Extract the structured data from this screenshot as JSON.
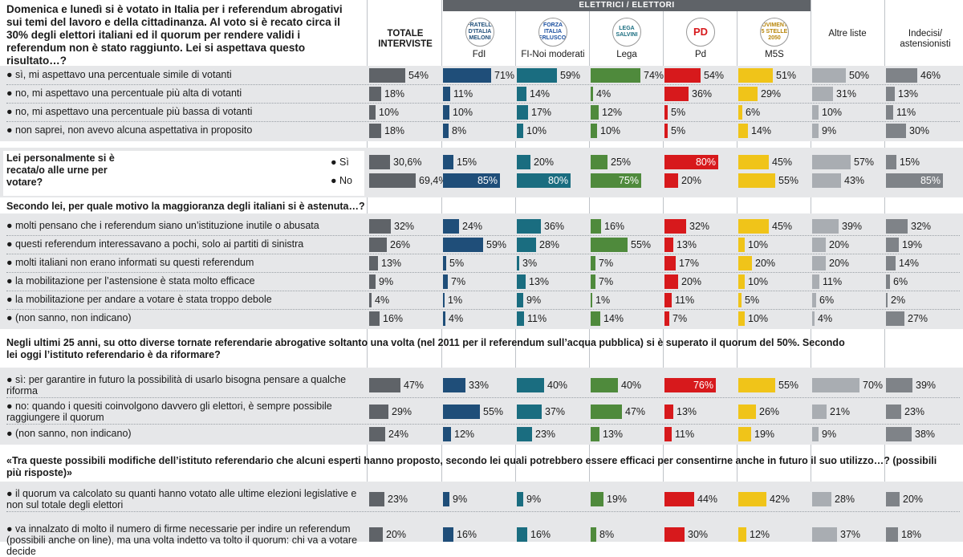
{
  "colors": {
    "totale": "#5f6368",
    "fdi": "#1f4e79",
    "fi": "#1a6d80",
    "lega": "#4f8a3c",
    "pd": "#d7191c",
    "m5s": "#f0c419",
    "altre": "#a9adb2",
    "indecisi": "#7f8388"
  },
  "header": {
    "question": "Domenica e lunedì si è votato in Italia per i referendum abrogativi sui temi del lavoro e della cittadinanza. Al voto si è recato circa il 30% degli elettori italiani ed il quorum per rendere validi i referendum non è stato raggiunto. Lei si aspettava questo risultato…?",
    "party_band": "ELETTRICI / ELETTORI",
    "totale": "TOTALE INTERVISTE",
    "columns": [
      "FdI",
      "FI-Noi moderati",
      "Lega",
      "Pd",
      "M5S",
      "Altre liste",
      "Indecisi/ astensionisti"
    ],
    "logos": [
      "FRATELLI D'ITALIA MELONI",
      "FORZA ITALIA BERLUSCONI",
      "LEGA SALVINI",
      "PD",
      "MOVIMENTO 5 STELLE 2050"
    ]
  },
  "sections": {
    "q2": "Lei personalmente si è recata/o alle urne per votare?",
    "q3": "Secondo lei, per quale motivo la maggioranza degli italiani si è astenuta…?",
    "q4": "Negli ultimi 25 anni, su otto diverse tornate referendarie abrogative soltanto una volta (nel 2011 per il referendum sull’acqua pubblica) si è superato il quorum del 50%. Secondo lei oggi l’istituto referendario è da riformare?",
    "q5": "«Tra queste possibili modifiche dell’istituto referendario che alcuni esperti hanno proposto, secondo lei quali potrebbero essere efficaci per consentirne anche in futuro il suo utilizzo…? (possibili più risposte)»"
  },
  "chart_data": {
    "type": "table",
    "series_names": [
      "Totale interviste",
      "FdI",
      "FI-Noi moderati",
      "Lega",
      "Pd",
      "M5S",
      "Altre liste",
      "Indecisi/astensionisti"
    ],
    "rows": [
      {
        "label": "sì, mi aspettavo una percentuale simile di votanti",
        "values": [
          54,
          71,
          59,
          74,
          54,
          51,
          50,
          46
        ],
        "labels": [
          "54%",
          "71%",
          "59%",
          "74%",
          "54%",
          "51%",
          "50%",
          "46%"
        ]
      },
      {
        "label": "no, mi aspettavo una percentuale più alta di votanti",
        "values": [
          18,
          11,
          14,
          4,
          36,
          29,
          31,
          13
        ],
        "labels": [
          "18%",
          "11%",
          "14%",
          "4%",
          "36%",
          "29%",
          "31%",
          "13%"
        ]
      },
      {
        "label": "no, mi aspettavo una percentuale più bassa di votanti",
        "values": [
          10,
          10,
          17,
          12,
          5,
          6,
          10,
          11
        ],
        "labels": [
          "10%",
          "10%",
          "17%",
          "12%",
          "5%",
          "6%",
          "10%",
          "11%"
        ]
      },
      {
        "label": "non saprei, non avevo alcuna aspettativa in proposito",
        "values": [
          18,
          8,
          10,
          10,
          5,
          14,
          9,
          30
        ],
        "labels": [
          "18%",
          "8%",
          "10%",
          "10%",
          "5%",
          "14%",
          "9%",
          "30%"
        ]
      },
      {
        "label": "Sì",
        "values": [
          30.6,
          15,
          20,
          25,
          80,
          45,
          57,
          15
        ],
        "labels": [
          "30,6%",
          "15%",
          "20%",
          "25%",
          "80%",
          "45%",
          "57%",
          "15%"
        ]
      },
      {
        "label": "No",
        "values": [
          69.4,
          85,
          80,
          75,
          20,
          55,
          43,
          85
        ],
        "labels": [
          "69,4%",
          "85%",
          "80%",
          "75%",
          "20%",
          "55%",
          "43%",
          "85%"
        ]
      },
      {
        "label": "molti pensano che i referendum siano un’istituzione inutile o abusata",
        "values": [
          32,
          24,
          36,
          16,
          32,
          45,
          39,
          32
        ],
        "labels": [
          "32%",
          "24%",
          "36%",
          "16%",
          "32%",
          "45%",
          "39%",
          "32%"
        ]
      },
      {
        "label": "questi referendum interessavano a pochi, solo ai partiti di sinistra",
        "values": [
          26,
          59,
          28,
          55,
          13,
          10,
          20,
          19
        ],
        "labels": [
          "26%",
          "59%",
          "28%",
          "55%",
          "13%",
          "10%",
          "20%",
          "19%"
        ]
      },
      {
        "label": "molti italiani non erano informati su questi referendum",
        "values": [
          13,
          5,
          3,
          7,
          17,
          20,
          20,
          14
        ],
        "labels": [
          "13%",
          "5%",
          "3%",
          "7%",
          "17%",
          "20%",
          "20%",
          "14%"
        ]
      },
      {
        "label": "la mobilitazione per l’astensione è stata molto efficace",
        "values": [
          9,
          7,
          13,
          7,
          20,
          10,
          11,
          6
        ],
        "labels": [
          "9%",
          "7%",
          "13%",
          "7%",
          "20%",
          "10%",
          "11%",
          "6%"
        ]
      },
      {
        "label": "la mobilitazione per andare a votare è stata troppo debole",
        "values": [
          4,
          1,
          9,
          1,
          11,
          5,
          6,
          2
        ],
        "labels": [
          "4%",
          "1%",
          "9%",
          "1%",
          "11%",
          "5%",
          "6%",
          "2%"
        ]
      },
      {
        "label": "(non sanno, non indicano)",
        "values": [
          16,
          4,
          11,
          14,
          7,
          10,
          4,
          27
        ],
        "labels": [
          "16%",
          "4%",
          "11%",
          "14%",
          "7%",
          "10%",
          "4%",
          "27%"
        ]
      },
      {
        "label": "sì: per garantire in futuro la possibilità di usarlo bisogna pensare a qualche riforma",
        "values": [
          47,
          33,
          40,
          40,
          76,
          55,
          70,
          39
        ],
        "labels": [
          "47%",
          "33%",
          "40%",
          "40%",
          "76%",
          "55%",
          "70%",
          "39%"
        ]
      },
      {
        "label": "no: quando i quesiti coinvolgono davvero gli elettori, è sempre possibile raggiungere il quorum",
        "values": [
          29,
          55,
          37,
          47,
          13,
          26,
          21,
          23
        ],
        "labels": [
          "29%",
          "55%",
          "37%",
          "47%",
          "13%",
          "26%",
          "21%",
          "23%"
        ]
      },
      {
        "label": "(non sanno, non indicano)",
        "values": [
          24,
          12,
          23,
          13,
          11,
          19,
          9,
          38
        ],
        "labels": [
          "24%",
          "12%",
          "23%",
          "13%",
          "11%",
          "19%",
          "9%",
          "38%"
        ]
      },
      {
        "label": "il quorum va calcolato su quanti hanno votato alle ultime elezioni legislative e non sul totale degli elettori",
        "values": [
          23,
          9,
          9,
          19,
          44,
          42,
          28,
          20
        ],
        "labels": [
          "23%",
          "9%",
          "9%",
          "19%",
          "44%",
          "42%",
          "28%",
          "20%"
        ]
      },
      {
        "label": "va innalzato di molto il numero di firme necessarie per indire un referendum (possibili anche on line), ma una volta indetto va tolto il quorum: chi va a votare decide",
        "values": [
          20,
          16,
          16,
          8,
          30,
          12,
          37,
          18
        ],
        "labels": [
          "20%",
          "16%",
          "16%",
          "8%",
          "30%",
          "12%",
          "37%",
          "18%"
        ]
      }
    ]
  }
}
